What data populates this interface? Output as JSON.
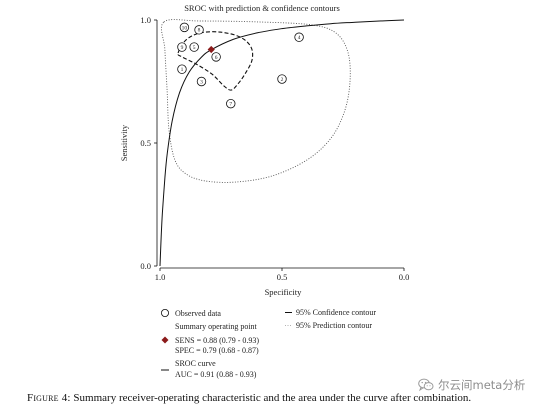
{
  "chart_data": {
    "type": "scatter",
    "title": "SROC with prediction & confidence contours",
    "xlabel": "Specificity",
    "ylabel": "Sensitivity",
    "xlim": [
      1.0,
      0.0
    ],
    "ylim": [
      0.0,
      1.0
    ],
    "x_reversed": true,
    "grid": false,
    "xticks": [
      {
        "value": 1.0,
        "label": "1.0"
      },
      {
        "value": 0.5,
        "label": "0.5"
      },
      {
        "value": 0.0,
        "label": "0.0"
      }
    ],
    "yticks": [
      {
        "value": 1.0,
        "label": "1.0"
      },
      {
        "value": 0.5,
        "label": "0.5"
      },
      {
        "value": 0.0,
        "label": "0.0"
      }
    ],
    "observed": [
      {
        "label": "1",
        "spec": 0.91,
        "sens": 0.8
      },
      {
        "label": "2",
        "spec": 0.5,
        "sens": 0.76
      },
      {
        "label": "3",
        "spec": 0.83,
        "sens": 0.75
      },
      {
        "label": "4",
        "spec": 0.43,
        "sens": 0.93
      },
      {
        "label": "5",
        "spec": 0.86,
        "sens": 0.89
      },
      {
        "label": "6",
        "spec": 0.77,
        "sens": 0.85
      },
      {
        "label": "7",
        "spec": 0.71,
        "sens": 0.66
      },
      {
        "label": "8",
        "spec": 0.84,
        "sens": 0.96
      },
      {
        "label": "9",
        "spec": 0.91,
        "sens": 0.89
      },
      {
        "label": "10",
        "spec": 0.9,
        "sens": 0.97
      }
    ],
    "summary_point": {
      "spec": 0.79,
      "sens": 0.88
    },
    "sroc_curve": [
      [
        1.0,
        0.0
      ],
      [
        0.998,
        0.052
      ],
      [
        0.995,
        0.121
      ],
      [
        0.99,
        0.217
      ],
      [
        0.98,
        0.359
      ],
      [
        0.97,
        0.459
      ],
      [
        0.95,
        0.59
      ],
      [
        0.92,
        0.704
      ],
      [
        0.88,
        0.789
      ],
      [
        0.83,
        0.849
      ],
      [
        0.79,
        0.879
      ],
      [
        0.7,
        0.921
      ],
      [
        0.6,
        0.948
      ],
      [
        0.5,
        0.965
      ],
      [
        0.4,
        0.976
      ],
      [
        0.3,
        0.985
      ],
      [
        0.2,
        0.991
      ],
      [
        0.1,
        0.996
      ],
      [
        0.0,
        1.0
      ]
    ],
    "confidence_contour": [
      [
        0.926,
        0.866
      ],
      [
        0.893,
        0.919
      ],
      [
        0.836,
        0.947
      ],
      [
        0.754,
        0.951
      ],
      [
        0.672,
        0.931
      ],
      [
        0.627,
        0.89
      ],
      [
        0.623,
        0.837
      ],
      [
        0.652,
        0.78
      ],
      [
        0.684,
        0.736
      ],
      [
        0.709,
        0.715
      ],
      [
        0.738,
        0.732
      ],
      [
        0.787,
        0.78
      ],
      [
        0.852,
        0.821
      ],
      [
        0.91,
        0.85
      ]
    ],
    "prediction_contour": [
      [
        0.984,
        0.992
      ],
      [
        0.836,
        0.996
      ],
      [
        0.59,
        0.992
      ],
      [
        0.377,
        0.98
      ],
      [
        0.279,
        0.947
      ],
      [
        0.23,
        0.87
      ],
      [
        0.221,
        0.756
      ],
      [
        0.242,
        0.634
      ],
      [
        0.299,
        0.52
      ],
      [
        0.398,
        0.431
      ],
      [
        0.541,
        0.366
      ],
      [
        0.693,
        0.341
      ],
      [
        0.816,
        0.346
      ],
      [
        0.893,
        0.374
      ],
      [
        0.939,
        0.431
      ],
      [
        0.963,
        0.553
      ],
      [
        0.971,
        0.715
      ],
      [
        0.98,
        0.878
      ]
    ],
    "legend": {
      "observed": "Observed data",
      "summary_title": "Summary operating point",
      "sens": "SENS = 0.88 (0.79 - 0.93)",
      "spec": "SPEC = 0.79 (0.68 - 0.87)",
      "sroc_title": "SROC curve",
      "auc": "AUC = 0.91 (0.88 - 0.93)",
      "confidence": "95% Confidence contour",
      "prediction": "95% Prediction contour"
    },
    "colors": {
      "summary_point": "#8b1a1a",
      "lines": "#111111",
      "prediction_contour": "#555555"
    }
  },
  "figure": {
    "caption_label": "Figure 4:",
    "caption_text": "Summary receiver-operating characteristic and the area under the curve after combination."
  },
  "watermark": {
    "icon": "wechat-icon",
    "text": "尔云间meta分析"
  }
}
